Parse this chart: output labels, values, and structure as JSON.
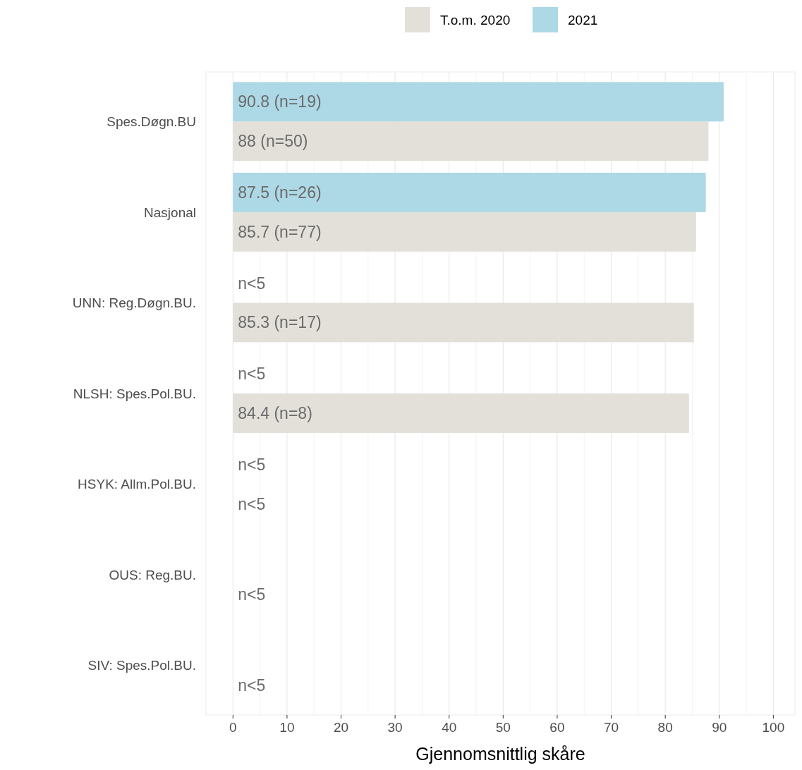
{
  "chart_data": {
    "type": "bar",
    "orientation": "horizontal",
    "xlabel": "Gjennomsnittlig skåre",
    "categories": [
      "Spes.Døgn.BU",
      "Nasjonal",
      "UNN: Reg.Døgn.BU.",
      "NLSH: Spes.Pol.BU.",
      "HSYK: Allm.Pol.BU.",
      "OUS: Reg.BU.",
      "SIV: Spes.Pol.BU."
    ],
    "series": [
      {
        "name": "T.o.m. 2020",
        "color": "#e3e0da",
        "values": [
          88,
          85.7,
          85.3,
          84.4,
          null,
          null,
          null
        ],
        "value_labels": [
          "88 (n=50)",
          "85.7 (n=77)",
          "85.3 (n=17)",
          "84.4 (n=8)",
          "n<5",
          "n<5",
          "n<5"
        ]
      },
      {
        "name": "2021",
        "color": "#add8e6",
        "values": [
          90.8,
          87.5,
          null,
          null,
          null,
          null,
          null
        ],
        "value_labels": [
          "90.8 (n=19)",
          "87.5 (n=26)",
          "n<5",
          "n<5",
          "n<5",
          null,
          null
        ]
      }
    ],
    "xlim": [
      -5,
      104
    ],
    "xticks": [
      0,
      10,
      20,
      30,
      40,
      50,
      60,
      70,
      80,
      90,
      100
    ],
    "grid": "x",
    "legend": "top"
  }
}
